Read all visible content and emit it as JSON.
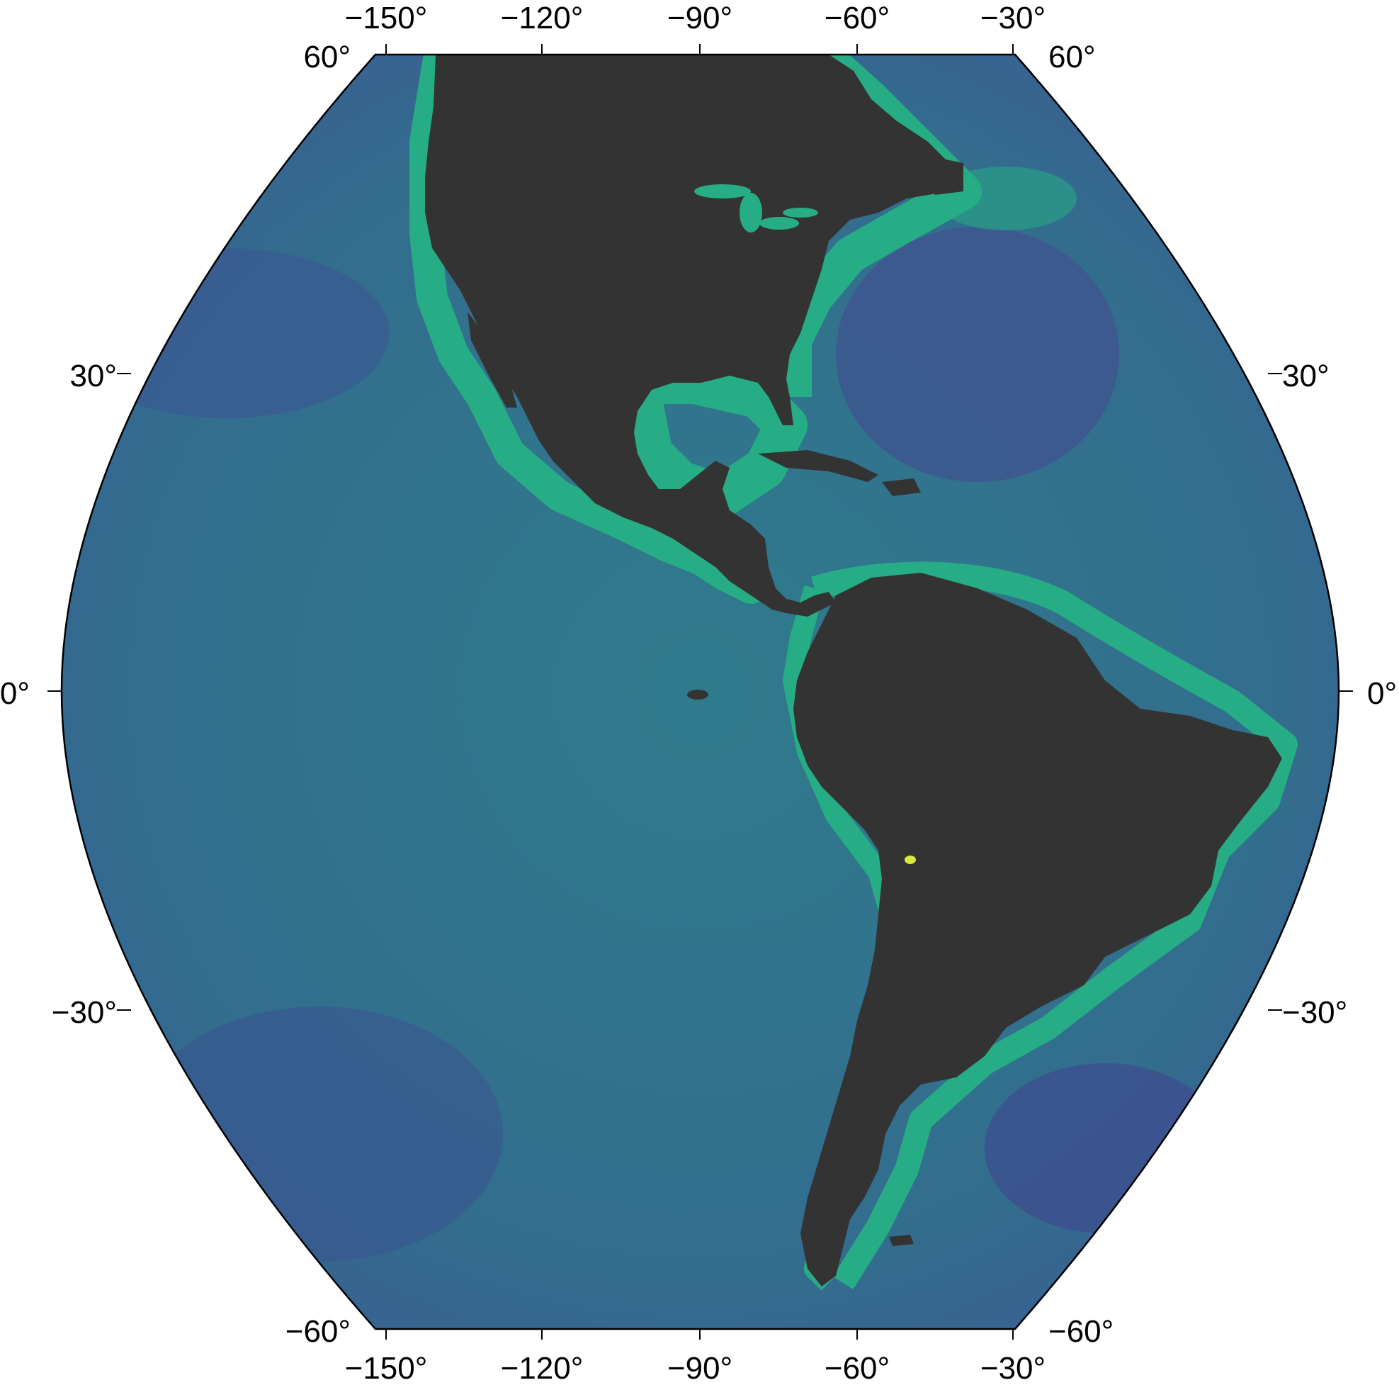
{
  "map": {
    "colors": {
      "ocean_deep": "#3b5a93",
      "ocean_mid": "#2f7b8c",
      "ocean_shelf": "#27ad85",
      "land": "#333333",
      "frame": "#000000",
      "highlight": "#d6e83c"
    },
    "top_longitude_labels": [
      "−150°",
      "−120°",
      "−90°",
      "−60°",
      "−30°"
    ],
    "bottom_longitude_labels": [
      "−150°",
      "−120°",
      "−90°",
      "−60°",
      "−30°"
    ],
    "left_latitude_labels": [
      "60°",
      "30°",
      "0°",
      "−30°",
      "−60°"
    ],
    "right_latitude_labels": [
      "60°",
      "30°",
      "0°",
      "−30°",
      "−60°"
    ]
  }
}
